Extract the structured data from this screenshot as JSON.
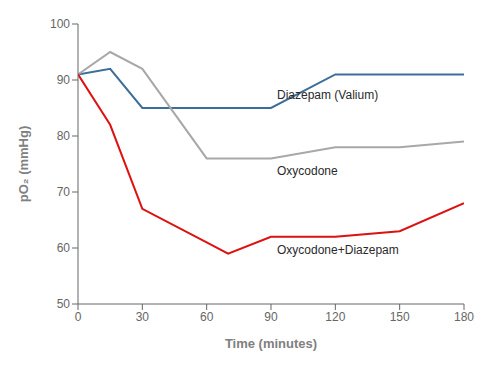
{
  "chart_data": {
    "type": "line",
    "xlabel": "Time (minutes)",
    "ylabel": "pO₂ (mmHg)",
    "x": [
      0,
      15,
      30,
      60,
      70,
      90,
      120,
      150,
      180
    ],
    "series": [
      {
        "name": "Diazepam (Valium)",
        "color": "#3d6e99",
        "values": [
          91,
          92,
          85,
          85,
          85,
          85,
          91,
          91,
          91
        ]
      },
      {
        "name": "Oxycodone",
        "color": "#a8a8a8",
        "values": [
          91,
          95,
          92,
          76,
          76,
          76,
          78,
          78,
          79
        ]
      },
      {
        "name": "Oxycodone+Diazepam",
        "color": "#dd1111",
        "values": [
          91,
          82,
          67,
          61,
          59,
          62,
          62,
          63,
          68
        ]
      }
    ],
    "xlim": [
      0,
      180
    ],
    "ylim": [
      50,
      100
    ],
    "xticks": [
      0,
      30,
      60,
      90,
      120,
      150,
      180
    ],
    "yticks": [
      50,
      60,
      70,
      80,
      90,
      100
    ],
    "grid": false
  }
}
